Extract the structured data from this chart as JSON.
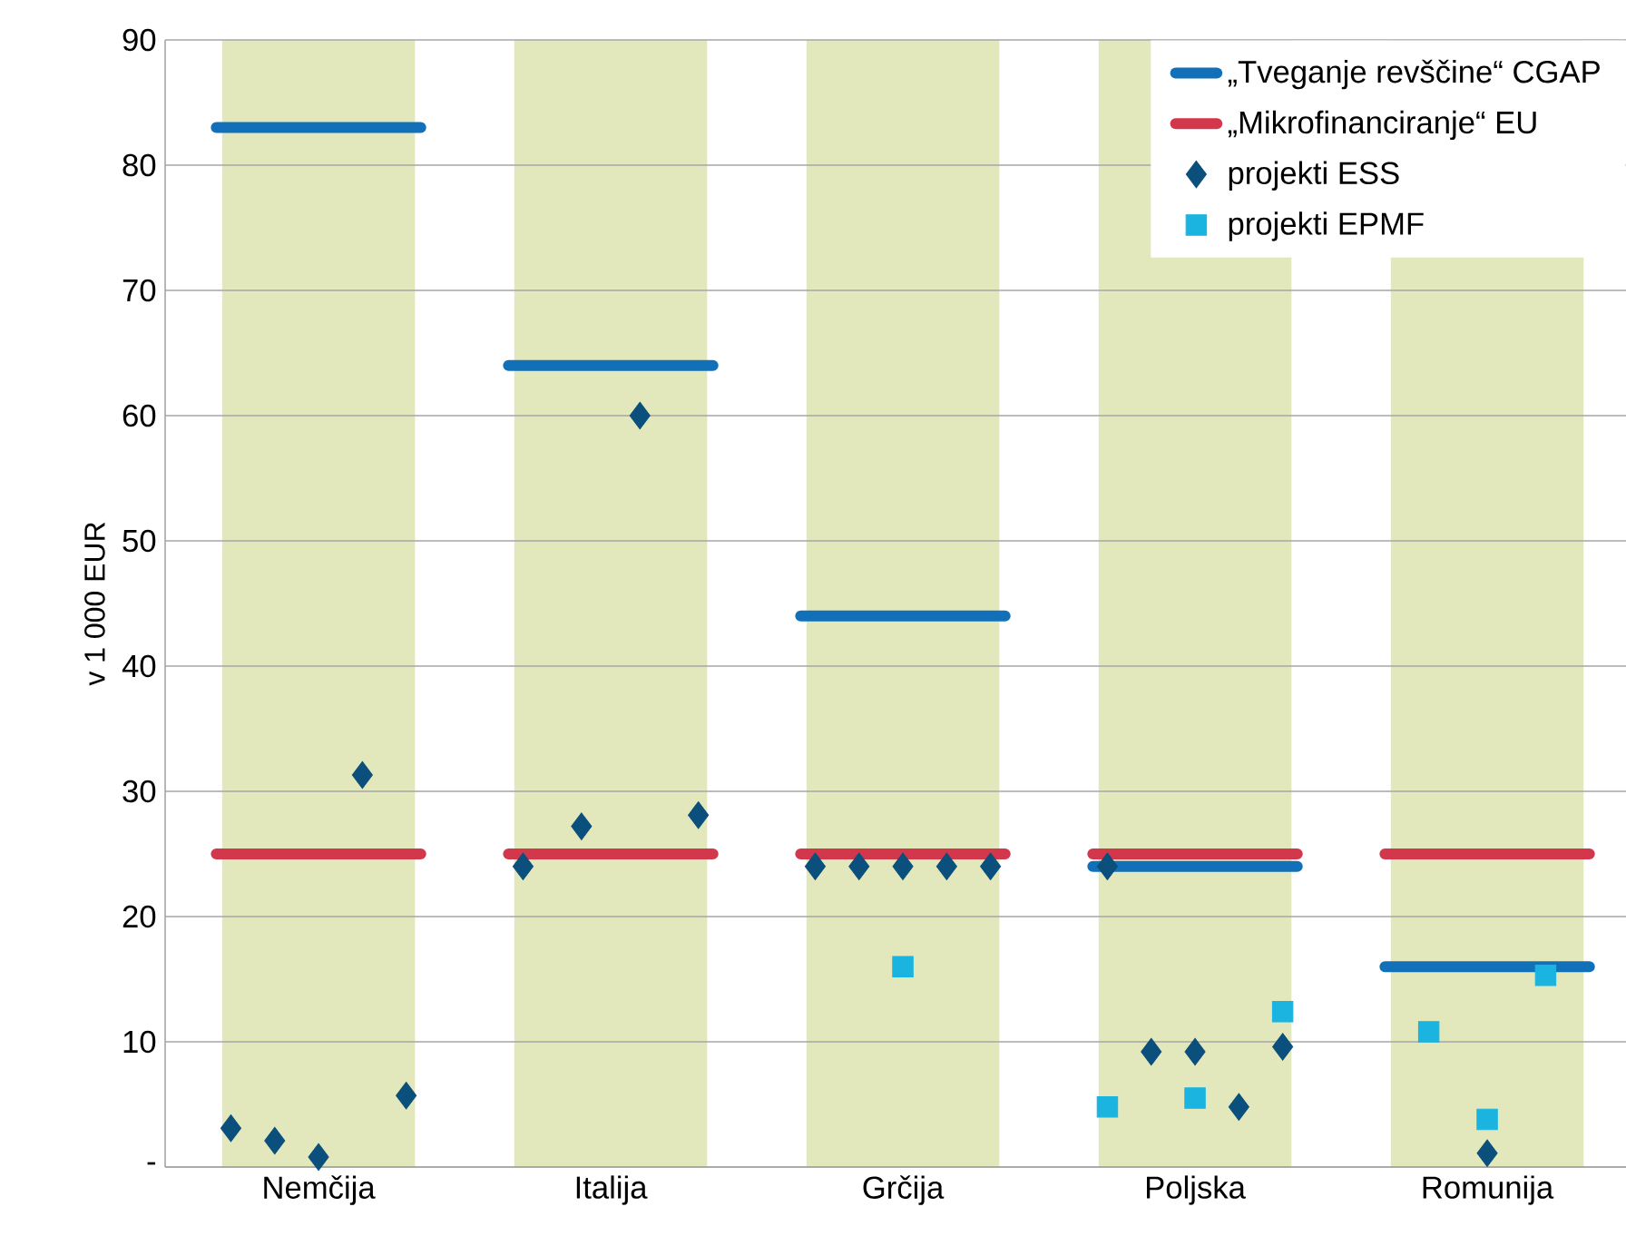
{
  "chart_data": {
    "type": "scatter",
    "ylabel": "v 1 000 EUR",
    "categories": [
      null,
      null,
      null,
      null,
      null,
      null,
      null,
      null,
      null,
      null,
      "Nemčija",
      null,
      null,
      null,
      null,
      null,
      null,
      null,
      null,
      null,
      null,
      null,
      null,
      null,
      null,
      null,
      null,
      null,
      null,
      null,
      "Italija",
      null,
      null,
      null,
      null,
      null,
      null,
      null,
      null,
      null,
      null,
      null,
      null,
      null,
      null,
      null,
      null,
      null,
      null,
      null,
      "Grčija",
      null,
      null,
      null,
      null,
      null,
      null,
      null,
      null,
      null,
      null,
      null,
      null,
      null,
      null,
      null,
      null,
      null,
      null,
      null,
      "Poljska",
      null,
      null,
      null,
      null,
      null,
      null,
      null,
      null,
      null,
      null,
      null,
      null,
      null,
      null,
      null,
      null,
      null,
      null,
      null,
      "Romunija",
      null,
      null,
      null,
      null,
      null,
      null,
      null,
      null,
      null
    ],
    "ylim": [
      0,
      90
    ],
    "yticks": [
      {
        "value": 0,
        "label": "-"
      },
      10,
      20,
      30,
      40,
      50,
      60,
      70,
      80,
      90
    ],
    "grid": "y",
    "legend": "top right",
    "series": [
      {
        "name": "„Tveganje revščine“ CGAP",
        "type": "line",
        "color": "#1270b9",
        "marker": "none",
        "values": [
          null,
          null,
          null,
          83,
          83,
          83,
          83,
          83,
          83,
          83,
          83,
          83,
          83,
          83,
          83,
          83,
          83,
          83,
          null,
          null,
          null,
          null,
          null,
          64,
          64,
          64,
          64,
          64,
          64,
          64,
          64,
          64,
          64,
          64,
          64,
          64,
          64,
          64,
          null,
          null,
          null,
          null,
          null,
          44,
          44,
          44,
          44,
          44,
          44,
          44,
          44,
          44,
          44,
          44,
          44,
          44,
          44,
          44,
          null,
          null,
          null,
          null,
          null,
          24,
          24,
          24,
          24,
          24,
          24,
          24,
          24,
          24,
          24,
          24,
          24,
          24,
          24,
          24,
          null,
          null,
          null,
          null,
          null,
          16,
          16,
          16,
          16,
          16,
          16,
          16,
          16,
          16,
          16,
          16,
          16,
          16,
          16,
          16,
          null,
          null
        ]
      },
      {
        "name": "„Mikrofinanciranje“ EU",
        "type": "line",
        "color": "#d2374b",
        "marker": "none",
        "values": [
          null,
          null,
          null,
          25,
          25,
          25,
          25,
          25,
          25,
          25,
          25,
          25,
          25,
          25,
          25,
          25,
          25,
          25,
          null,
          null,
          null,
          null,
          null,
          25,
          25,
          25,
          25,
          25,
          25,
          25,
          25,
          25,
          25,
          25,
          25,
          25,
          25,
          25,
          null,
          null,
          null,
          null,
          null,
          25,
          25,
          25,
          25,
          25,
          25,
          25,
          25,
          25,
          25,
          25,
          25,
          25,
          25,
          25,
          null,
          null,
          null,
          null,
          null,
          25,
          25,
          25,
          25,
          25,
          25,
          25,
          25,
          25,
          25,
          25,
          25,
          25,
          25,
          25,
          null,
          null,
          null,
          null,
          null,
          25,
          25,
          25,
          25,
          25,
          25,
          25,
          25,
          25,
          25,
          25,
          25,
          25,
          25,
          25,
          null,
          null
        ]
      },
      {
        "name": "projekti ESS",
        "color": "#0b4f7c",
        "marker": "diamond",
        "values": [
          null,
          null,
          null,
          null,
          3.1,
          null,
          null,
          2.1,
          null,
          null,
          0.8,
          null,
          null,
          31.3,
          null,
          null,
          5.7,
          null,
          null,
          null,
          null,
          null,
          null,
          null,
          24,
          null,
          null,
          null,
          27.2,
          null,
          null,
          null,
          60,
          null,
          null,
          null,
          28.1,
          null,
          null,
          null,
          null,
          null,
          null,
          null,
          24,
          null,
          null,
          24,
          null,
          null,
          24,
          null,
          null,
          24,
          null,
          null,
          24,
          null,
          null,
          null,
          null,
          null,
          null,
          null,
          24,
          null,
          null,
          9.2,
          null,
          null,
          9.2,
          null,
          null,
          4.8,
          null,
          null,
          9.6,
          null,
          null,
          null,
          null,
          null,
          null,
          null,
          null,
          null,
          null,
          null,
          null,
          null,
          1.1,
          null,
          null,
          null,
          null,
          null,
          null,
          null,
          null,
          null
        ]
      },
      {
        "name": "projekti EPMF",
        "color": "#1bb4e0",
        "marker": "square",
        "values": [
          null,
          null,
          null,
          null,
          null,
          null,
          null,
          null,
          null,
          null,
          null,
          null,
          null,
          null,
          null,
          null,
          null,
          null,
          null,
          null,
          null,
          null,
          null,
          null,
          null,
          null,
          null,
          null,
          null,
          null,
          null,
          null,
          null,
          null,
          null,
          null,
          null,
          null,
          null,
          null,
          null,
          null,
          null,
          null,
          null,
          null,
          null,
          null,
          null,
          null,
          16,
          null,
          null,
          null,
          null,
          null,
          null,
          null,
          null,
          null,
          null,
          null,
          null,
          null,
          4.8,
          null,
          null,
          null,
          null,
          null,
          5.5,
          null,
          null,
          null,
          null,
          null,
          12.4,
          null,
          null,
          null,
          null,
          null,
          null,
          null,
          null,
          null,
          10.8,
          null,
          null,
          null,
          3.8,
          null,
          null,
          null,
          15.3,
          null,
          null,
          null,
          null,
          null
        ]
      }
    ]
  }
}
